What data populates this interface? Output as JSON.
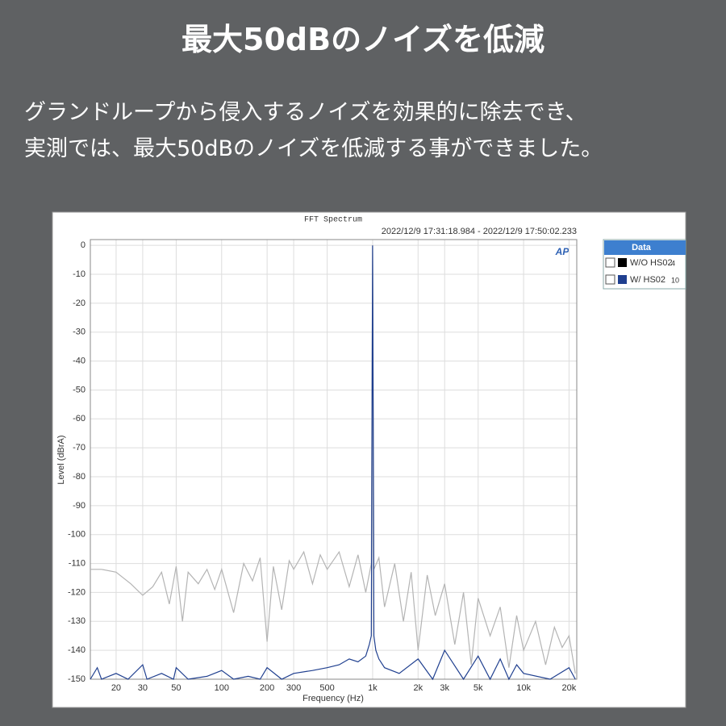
{
  "header": {
    "title": "最大50dBのノイズを低減",
    "lines": [
      "グランドループから侵入するノイズを効果的に除去でき、",
      "実測では、最大50dBのノイズを低減する事ができました。"
    ]
  },
  "chart_data": {
    "type": "line",
    "title": "FFT Spectrum",
    "subtitle": "2022/12/9 17:31:18.984 - 2022/12/9 17:50:02.233",
    "logo": "AP",
    "xlabel": "Frequency (Hz)",
    "ylabel": "Level (dBrA)",
    "xscale": "log",
    "grid": true,
    "legend_title": "Data",
    "legend_position": "right",
    "xlim": [
      13.5,
      22500
    ],
    "ylim": [
      -150,
      2
    ],
    "xticks": [
      20,
      30,
      50,
      100,
      200,
      300,
      500,
      {
        "value": 1000,
        "label": "1k"
      },
      {
        "value": 2000,
        "label": "2k"
      },
      {
        "value": 3000,
        "label": "3k"
      },
      {
        "value": 5000,
        "label": "5k"
      },
      {
        "value": 10000,
        "label": "10k"
      },
      {
        "value": 20000,
        "label": "20k"
      }
    ],
    "yticks": [
      0,
      -10,
      -20,
      -30,
      -40,
      -50,
      -60,
      -70,
      -80,
      -90,
      -100,
      -110,
      -120,
      -130,
      -140,
      -150
    ],
    "series": [
      {
        "name": "W/O HS02",
        "legend_suffix": "4",
        "color": "#b4b4b4",
        "swatch": "#000000",
        "x": [
          13.5,
          16,
          20,
          25,
          30,
          35,
          40,
          45,
          50,
          55,
          60,
          70,
          80,
          90,
          100,
          120,
          140,
          160,
          180,
          200,
          220,
          250,
          280,
          300,
          350,
          400,
          450,
          500,
          600,
          700,
          800,
          900,
          980,
          1000,
          1020,
          1100,
          1200,
          1400,
          1600,
          1800,
          2000,
          2300,
          2600,
          3000,
          3500,
          4000,
          4500,
          5000,
          6000,
          7000,
          8000,
          9000,
          10000,
          12000,
          14000,
          16000,
          18000,
          20000,
          22000
        ],
        "values": [
          -112,
          -112,
          -113,
          -117,
          -121,
          -118,
          -113,
          -124,
          -111,
          -130,
          -113,
          -117,
          -112,
          -119,
          -112,
          -127,
          -110,
          -116,
          -108,
          -137,
          -111,
          -126,
          -109,
          -112,
          -106,
          -117,
          -107,
          -112,
          -106,
          -118,
          -107,
          -120,
          -110,
          0,
          -112,
          -108,
          -125,
          -110,
          -130,
          -113,
          -140,
          -114,
          -128,
          -117,
          -138,
          -120,
          -145,
          -122,
          -135,
          -125,
          -146,
          -128,
          -140,
          -130,
          -145,
          -132,
          -139,
          -135,
          -148
        ]
      },
      {
        "name": "W/ HS02",
        "legend_suffix": "10",
        "color": "#1f3f8f",
        "swatch": "#1f3f8f",
        "x": [
          13.5,
          15,
          16,
          20,
          24,
          30,
          32,
          40,
          48,
          50,
          60,
          80,
          100,
          120,
          150,
          180,
          200,
          250,
          300,
          400,
          500,
          600,
          700,
          800,
          900,
          950,
          980,
          1000,
          1020,
          1050,
          1100,
          1200,
          1500,
          2000,
          2500,
          3000,
          4000,
          5000,
          6000,
          7000,
          8000,
          9000,
          10000,
          15000,
          20000,
          22000
        ],
        "values": [
          -150,
          -146,
          -150,
          -148,
          -150,
          -145,
          -150,
          -148,
          -150,
          -146,
          -150,
          -149,
          -147,
          -150,
          -149,
          -150,
          -146,
          -150,
          -148,
          -147,
          -146,
          -145,
          -143,
          -144,
          -142,
          -138,
          -135,
          0,
          -135,
          -140,
          -143,
          -146,
          -148,
          -143,
          -150,
          -140,
          -150,
          -142,
          -150,
          -143,
          -150,
          -145,
          -148,
          -150,
          -146,
          -150
        ]
      }
    ]
  }
}
